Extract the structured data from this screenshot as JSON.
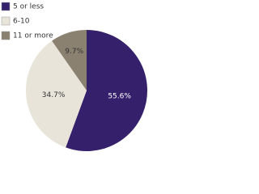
{
  "chart_data": {
    "type": "pie",
    "categories": [
      "5 or less",
      "6-10",
      "11 or more"
    ],
    "values": [
      55.6,
      34.7,
      9.7
    ],
    "value_labels": [
      "55.6%",
      "34.7%",
      "9.7%"
    ],
    "colors": [
      "#35206b",
      "#e9e4da",
      "#8b8171"
    ],
    "label_colors": [
      "#ffffff",
      "#333333",
      "#333333"
    ],
    "legend": "top-left"
  }
}
